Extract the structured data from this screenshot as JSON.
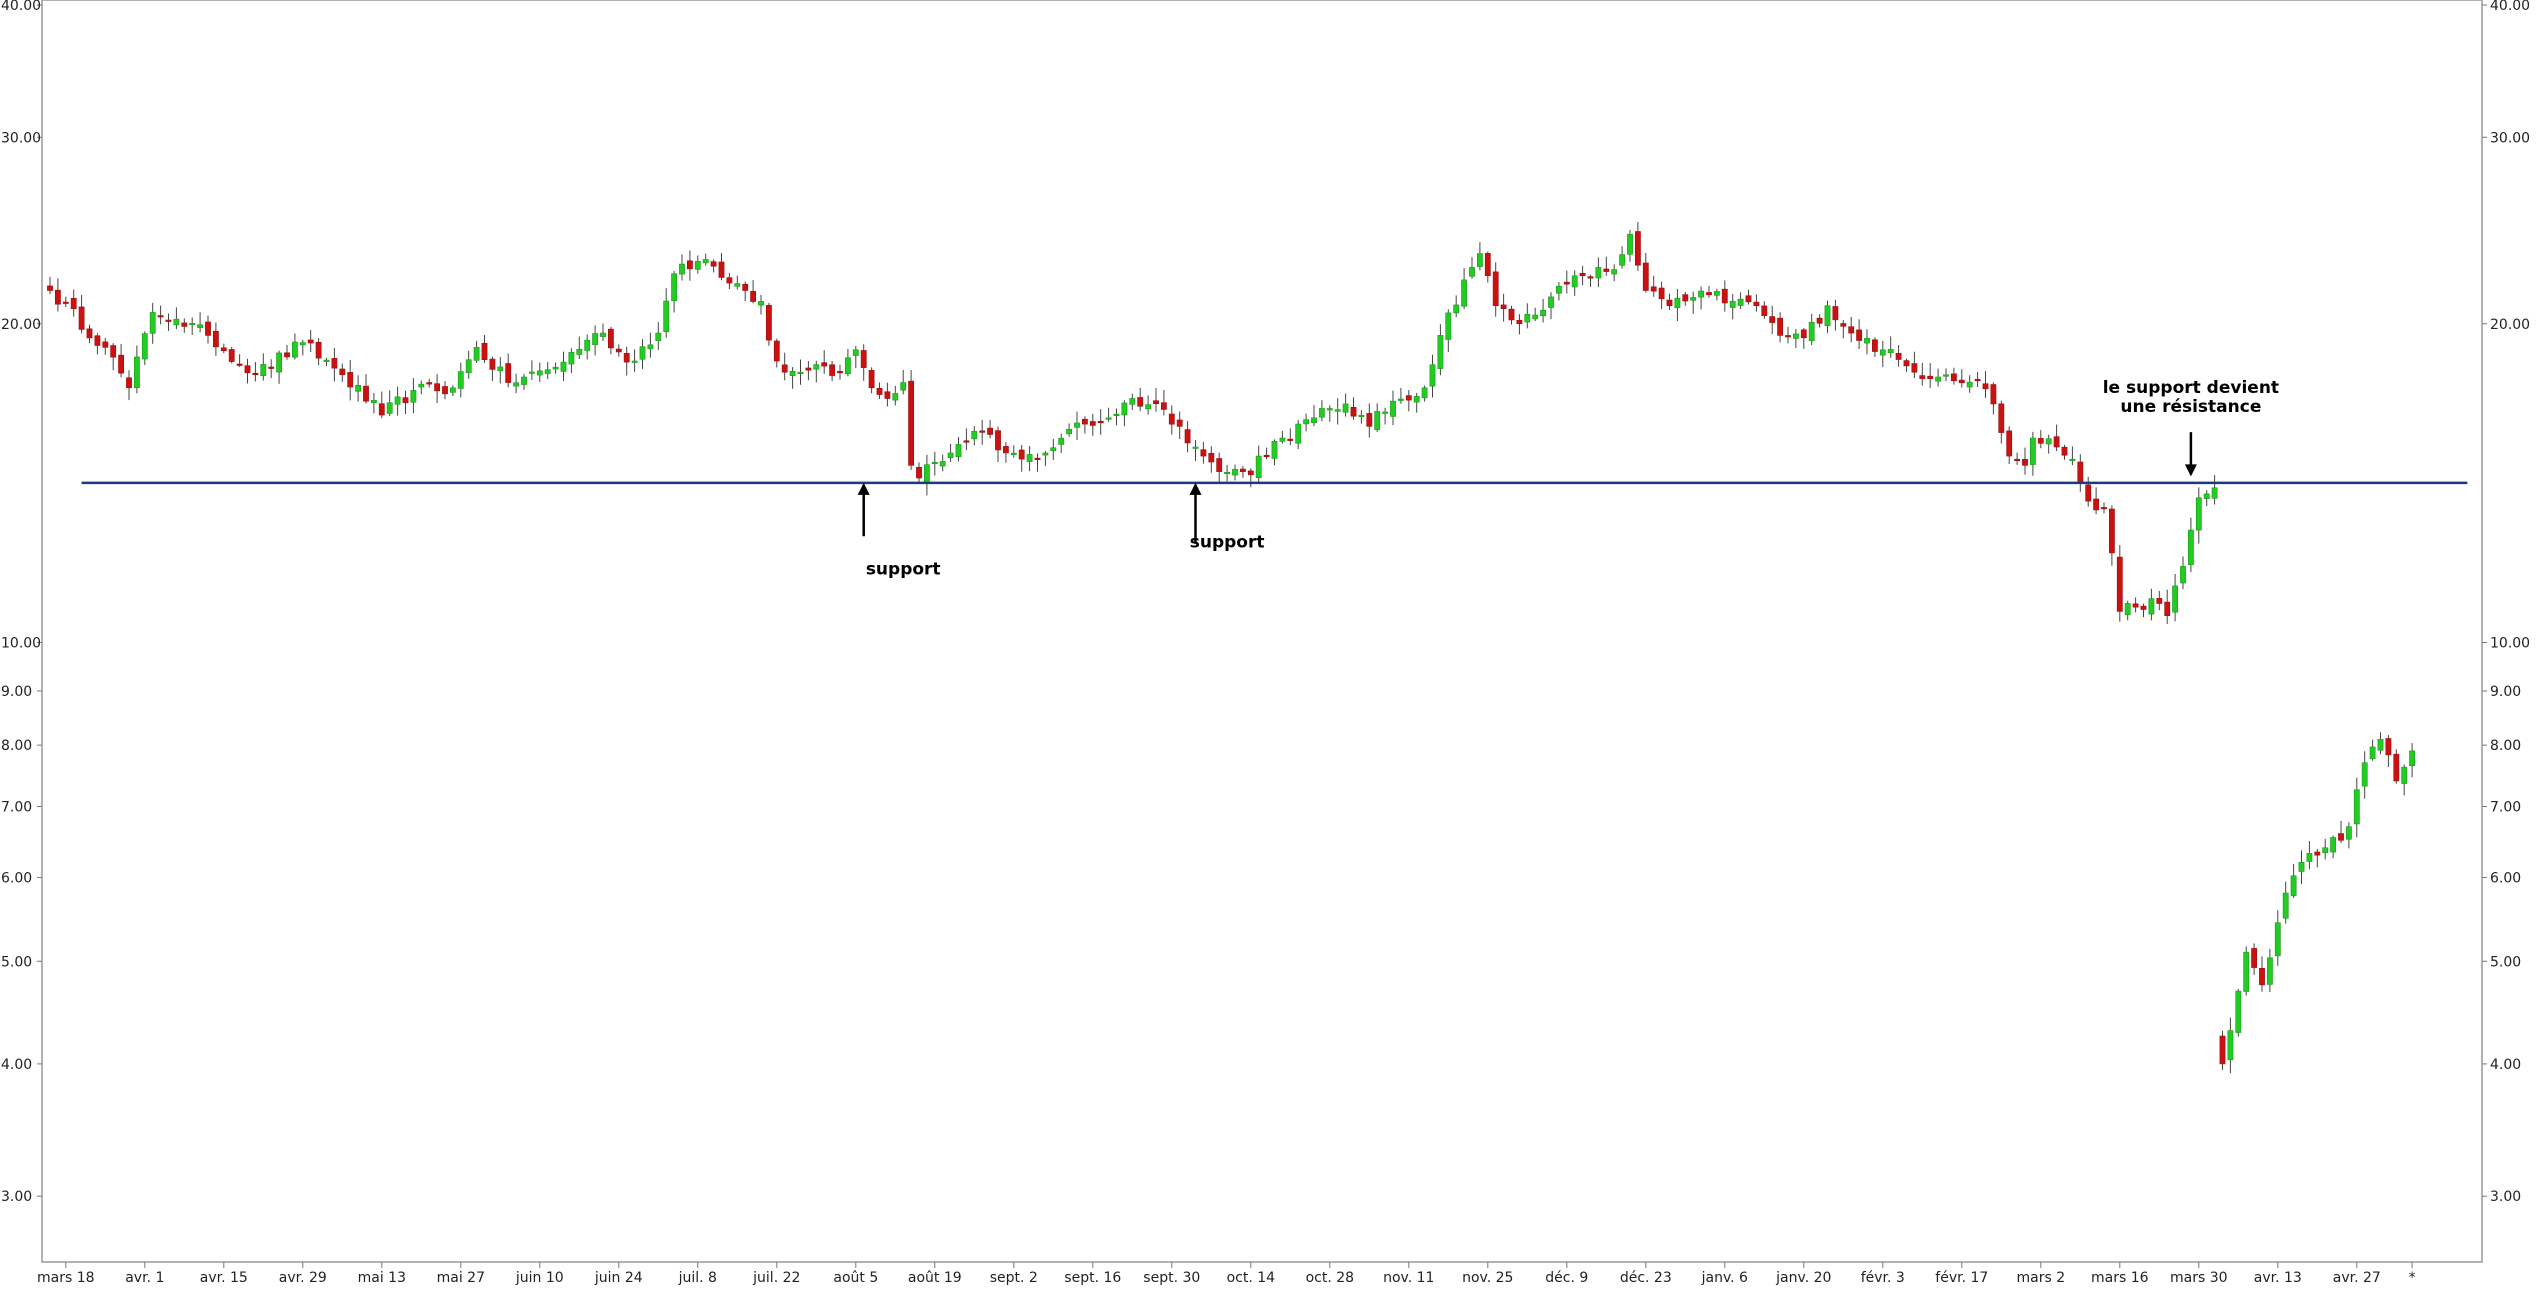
{
  "chart_data": {
    "type": "candlestick",
    "yscale": "log",
    "ylim": [
      2.6,
      40.0
    ],
    "y_ticks": [
      {
        "value": 40.0,
        "label": "40.00"
      },
      {
        "value": 30.0,
        "label": "30.00"
      },
      {
        "value": 20.0,
        "label": "20.00"
      },
      {
        "value": 10.0,
        "label": "10.00"
      },
      {
        "value": 9.0,
        "label": "9.00"
      },
      {
        "value": 8.0,
        "label": "8.00"
      },
      {
        "value": 7.0,
        "label": "7.00"
      },
      {
        "value": 6.0,
        "label": "6.00"
      },
      {
        "value": 5.0,
        "label": "5.00"
      },
      {
        "value": 4.0,
        "label": "4.00"
      },
      {
        "value": 3.0,
        "label": "3.00"
      }
    ],
    "x_ticks": [
      {
        "index": 2,
        "label": "mars 18"
      },
      {
        "index": 12,
        "label": "avr. 1"
      },
      {
        "index": 22,
        "label": "avr. 15"
      },
      {
        "index": 32,
        "label": "avr. 29"
      },
      {
        "index": 42,
        "label": "mai 13"
      },
      {
        "index": 52,
        "label": "mai 27"
      },
      {
        "index": 62,
        "label": "juin 10"
      },
      {
        "index": 72,
        "label": "juin 24"
      },
      {
        "index": 82,
        "label": "juil. 8"
      },
      {
        "index": 92,
        "label": "juil. 22"
      },
      {
        "index": 102,
        "label": "août 5"
      },
      {
        "index": 112,
        "label": "août 19"
      },
      {
        "index": 122,
        "label": "sept. 2"
      },
      {
        "index": 132,
        "label": "sept. 16"
      },
      {
        "index": 142,
        "label": "sept. 30"
      },
      {
        "index": 152,
        "label": "oct. 14"
      },
      {
        "index": 162,
        "label": "oct. 28"
      },
      {
        "index": 172,
        "label": "nov. 11"
      },
      {
        "index": 182,
        "label": "nov. 25"
      },
      {
        "index": 192,
        "label": "déc. 9"
      },
      {
        "index": 202,
        "label": "déc. 23"
      },
      {
        "index": 212,
        "label": "janv. 6"
      },
      {
        "index": 222,
        "label": "janv. 20"
      },
      {
        "index": 232,
        "label": "févr. 3"
      },
      {
        "index": 242,
        "label": "févr. 17"
      },
      {
        "index": 252,
        "label": "mars 2"
      },
      {
        "index": 262,
        "label": "mars 16"
      },
      {
        "index": 272,
        "label": "mars 30"
      },
      {
        "index": 282,
        "label": "avr. 13"
      },
      {
        "index": 292,
        "label": "avr. 27"
      },
      {
        "index": 299,
        "label": "*"
      }
    ],
    "support_line": {
      "value": 14.15,
      "start_index": 4,
      "end_index": 306,
      "color": "#1f3a7a"
    },
    "annotations": [
      {
        "text": "support",
        "index": 108,
        "value": 11.6,
        "arrow_from_value": 12.6,
        "arrow_to_value": 14.15
      },
      {
        "text": "support",
        "index": 149,
        "value": 12.3,
        "arrow_from_value": 12.4,
        "arrow_to_value": 14.15
      },
      {
        "text": "le support devient",
        "index": 271,
        "value": 17.2
      },
      {
        "text": "une résistance",
        "index": 271,
        "value": 16.5
      },
      {
        "text": "",
        "index": 271,
        "value": 16.5,
        "arrow_from_value": 15.8,
        "arrow_to_value": 14.35
      }
    ],
    "colors": {
      "up": "#22cc22",
      "down": "#cc1111",
      "wick": "#444444",
      "up_edge": "#1a991a",
      "down_edge": "#991111"
    },
    "anchors": [
      [
        0,
        21.5
      ],
      [
        7,
        19.0
      ],
      [
        10,
        17.4
      ],
      [
        13,
        20.5
      ],
      [
        16,
        20.2
      ],
      [
        20,
        19.5
      ],
      [
        26,
        17.9
      ],
      [
        32,
        19.2
      ],
      [
        37,
        17.9
      ],
      [
        42,
        16.4
      ],
      [
        46,
        17.3
      ],
      [
        51,
        17.4
      ],
      [
        54,
        19.0
      ],
      [
        58,
        17.6
      ],
      [
        64,
        18.2
      ],
      [
        68,
        19.3
      ],
      [
        70,
        19.6
      ],
      [
        73,
        18.4
      ],
      [
        77,
        19.6
      ],
      [
        79,
        22.3
      ],
      [
        83,
        23.0
      ],
      [
        88,
        21.5
      ],
      [
        90,
        21.0
      ],
      [
        91,
        19.3
      ],
      [
        93,
        18.0
      ],
      [
        97,
        18.3
      ],
      [
        100,
        18.0
      ],
      [
        102,
        18.9
      ],
      [
        104,
        17.4
      ],
      [
        106,
        17.0
      ],
      [
        108,
        17.6
      ],
      [
        109,
        14.7
      ],
      [
        110,
        14.3
      ],
      [
        112,
        14.8
      ],
      [
        116,
        15.5
      ],
      [
        118,
        15.8
      ],
      [
        120,
        15.2
      ],
      [
        123,
        14.9
      ],
      [
        126,
        15.1
      ],
      [
        129,
        15.9
      ],
      [
        134,
        16.3
      ],
      [
        137,
        17.0
      ],
      [
        141,
        16.6
      ],
      [
        143,
        16.0
      ],
      [
        146,
        15.0
      ],
      [
        148,
        14.5
      ],
      [
        151,
        14.5
      ],
      [
        152,
        14.4
      ],
      [
        153,
        15.0
      ],
      [
        156,
        15.6
      ],
      [
        160,
        16.3
      ],
      [
        164,
        16.8
      ],
      [
        167,
        16.0
      ],
      [
        170,
        16.9
      ],
      [
        174,
        17.4
      ],
      [
        176,
        19.5
      ],
      [
        179,
        22.0
      ],
      [
        181,
        23.3
      ],
      [
        183,
        20.8
      ],
      [
        186,
        20.0
      ],
      [
        190,
        21.2
      ],
      [
        194,
        22.2
      ],
      [
        198,
        22.5
      ],
      [
        200,
        24.3
      ],
      [
        202,
        21.5
      ],
      [
        205,
        20.8
      ],
      [
        210,
        21.3
      ],
      [
        213,
        21.0
      ],
      [
        216,
        20.8
      ],
      [
        219,
        19.5
      ],
      [
        222,
        19.4
      ],
      [
        225,
        20.8
      ],
      [
        228,
        19.6
      ],
      [
        232,
        18.9
      ],
      [
        236,
        18.0
      ],
      [
        240,
        17.9
      ],
      [
        244,
        17.7
      ],
      [
        246,
        16.8
      ],
      [
        248,
        15.0
      ],
      [
        250,
        14.7
      ],
      [
        251,
        15.6
      ],
      [
        254,
        15.3
      ],
      [
        256,
        14.9
      ],
      [
        258,
        13.6
      ],
      [
        260,
        13.4
      ],
      [
        262,
        10.7
      ],
      [
        264,
        10.8
      ],
      [
        266,
        11.0
      ],
      [
        268,
        10.6
      ],
      [
        270,
        11.8
      ],
      [
        272,
        13.7
      ],
      [
        274,
        14.0
      ],
      [
        275,
        4.0
      ],
      [
        276,
        4.3
      ],
      [
        278,
        5.1
      ],
      [
        280,
        4.75
      ],
      [
        283,
        5.8
      ],
      [
        285,
        6.2
      ],
      [
        288,
        6.4
      ],
      [
        291,
        6.7
      ],
      [
        293,
        7.7
      ],
      [
        295,
        8.1
      ],
      [
        297,
        7.4
      ],
      [
        299,
        7.9
      ]
    ]
  }
}
